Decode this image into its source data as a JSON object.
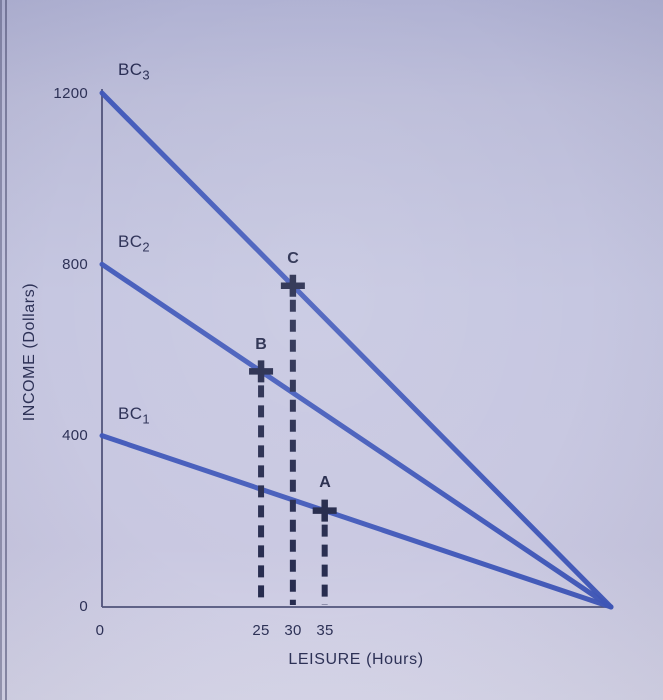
{
  "chart_data": {
    "type": "line",
    "title": "",
    "xlabel": "LEISURE (Hours)",
    "ylabel": "INCOME (Dollars)",
    "xlim": [
      0,
      80
    ],
    "ylim": [
      0,
      1200
    ],
    "grid": false,
    "legend_position": "none",
    "x_intercept_shared": 80,
    "x_tick_labels": [
      "0",
      "25",
      "30",
      "35"
    ],
    "x_tick_values": [
      0,
      25,
      30,
      35
    ],
    "y_tick_labels": [
      "1200",
      "800",
      "400",
      "0"
    ],
    "y_tick_values": [
      1200,
      800,
      400,
      0
    ],
    "series": [
      {
        "name": "BC1",
        "label_main": "BC",
        "label_sub": "1",
        "x": [
          0,
          80
        ],
        "y": [
          400,
          0
        ]
      },
      {
        "name": "BC2",
        "label_main": "BC",
        "label_sub": "2",
        "x": [
          0,
          80
        ],
        "y": [
          800,
          0
        ]
      },
      {
        "name": "BC3",
        "label_main": "BC",
        "label_sub": "3",
        "x": [
          0,
          80
        ],
        "y": [
          1200,
          0
        ]
      }
    ],
    "points": [
      {
        "label": "A",
        "x": 35,
        "y": 225,
        "on": "BC1",
        "marker": "plus"
      },
      {
        "label": "B",
        "x": 25,
        "y": 550,
        "on": "BC2",
        "marker": "plus"
      },
      {
        "label": "C",
        "x": 30,
        "y": 750,
        "on": "BC3",
        "marker": "plus"
      }
    ],
    "colors": {
      "line": "#4058ba",
      "marker": "#23284a",
      "dashed": "#262b4e",
      "axis": "#51547b",
      "text": "#2d3156",
      "background": "#c6c7e1"
    }
  }
}
